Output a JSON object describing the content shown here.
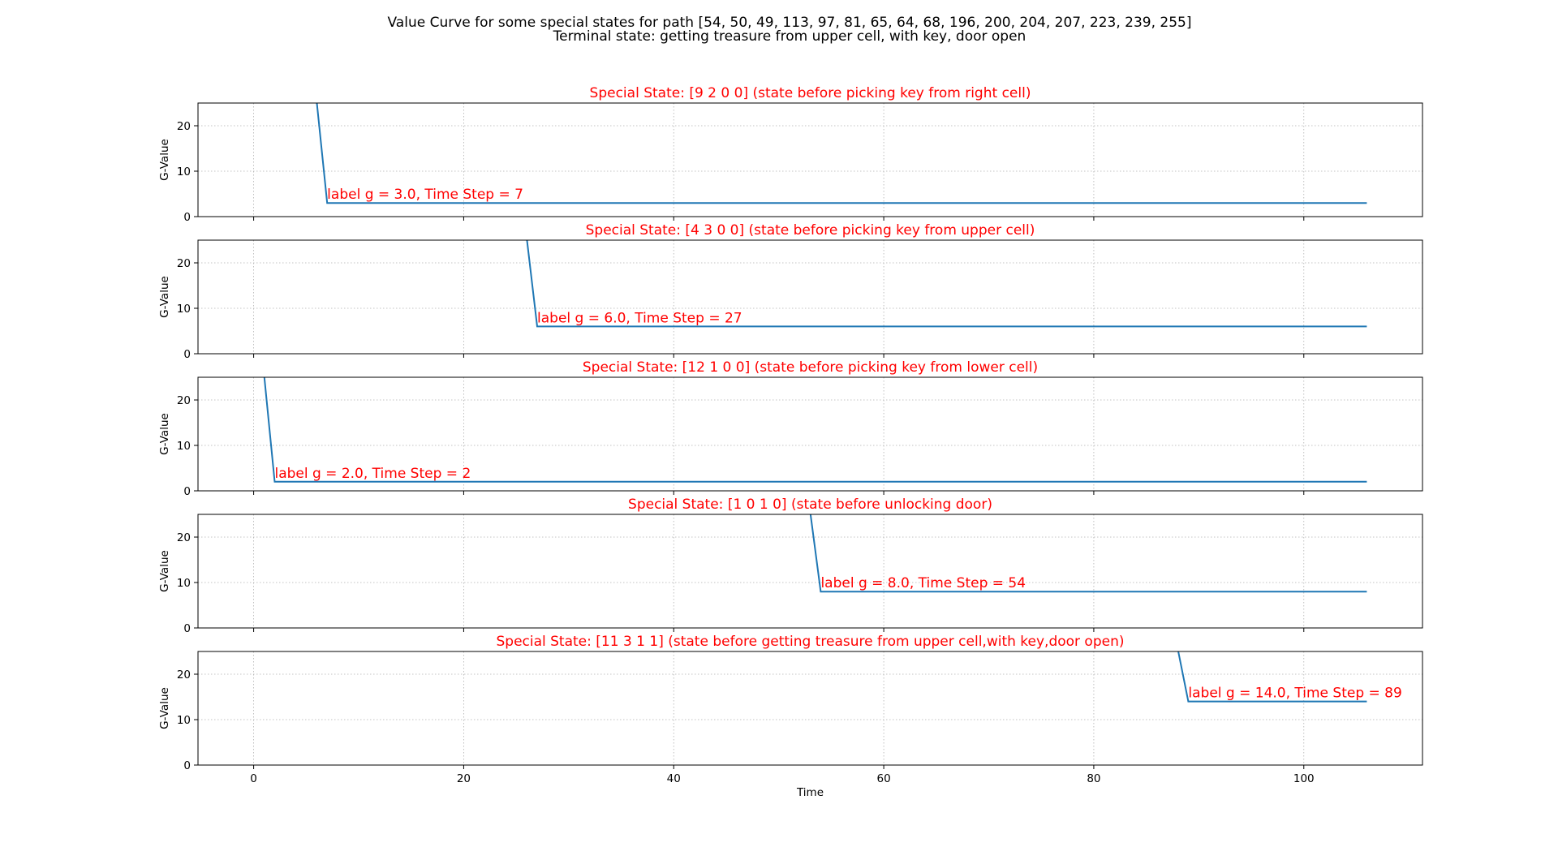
{
  "chart_data": {
    "type": "line",
    "title_lines": [
      "Value Curve for some special states for path [54, 50, 49, 113, 97, 81, 65, 64, 68, 196, 200, 204, 207, 223, 239, 255]",
      "Terminal state: getting treasure from upper cell, with key, door open"
    ],
    "xlabel": "Time",
    "ylabel": "G-Value",
    "xlim": [
      -5.3,
      111.3
    ],
    "ylim": [
      0,
      25
    ],
    "x_ticks": [
      0,
      20,
      40,
      60,
      80,
      100
    ],
    "y_ticks": [
      0,
      10,
      20
    ],
    "grid": true,
    "line_color": "#1f77b4",
    "title_color": "#ff0000",
    "annotation_color": "#ff0000",
    "subplots": [
      {
        "title": "Special State: [9 2 0 0] (state before picking key from right cell)",
        "series": {
          "x": [
            6,
            7,
            106
          ],
          "y": [
            25.5,
            3.0,
            3.0
          ]
        },
        "annotation": {
          "text": "label g = 3.0, Time Step = 7",
          "x": 7,
          "y": 3.0
        }
      },
      {
        "title": "Special State: [4 3 0 0] (state before picking key from upper cell)",
        "series": {
          "x": [
            26,
            27,
            106
          ],
          "y": [
            25.5,
            6.0,
            6.0
          ]
        },
        "annotation": {
          "text": "label g = 6.0, Time Step = 27",
          "x": 27,
          "y": 6.0
        }
      },
      {
        "title": "Special State: [12  1  0  0] (state before picking key from lower cell)",
        "series": {
          "x": [
            1,
            2,
            106
          ],
          "y": [
            25.5,
            2.0,
            2.0
          ]
        },
        "annotation": {
          "text": "label g = 2.0, Time Step = 2",
          "x": 2,
          "y": 2.0
        }
      },
      {
        "title": "Special State: [1 0 1 0] (state before unlocking door)",
        "series": {
          "x": [
            53,
            54,
            106
          ],
          "y": [
            25.5,
            8.0,
            8.0
          ]
        },
        "annotation": {
          "text": "label g = 8.0, Time Step = 54",
          "x": 54,
          "y": 8.0
        }
      },
      {
        "title": "Special State: [11  3  1  1] (state before getting treasure from upper cell,with key,door open)",
        "series": {
          "x": [
            88,
            89,
            106
          ],
          "y": [
            25.5,
            14.0,
            14.0
          ]
        },
        "annotation": {
          "text": "label g = 14.0, Time Step = 89",
          "x": 89,
          "y": 14.0
        }
      }
    ]
  }
}
